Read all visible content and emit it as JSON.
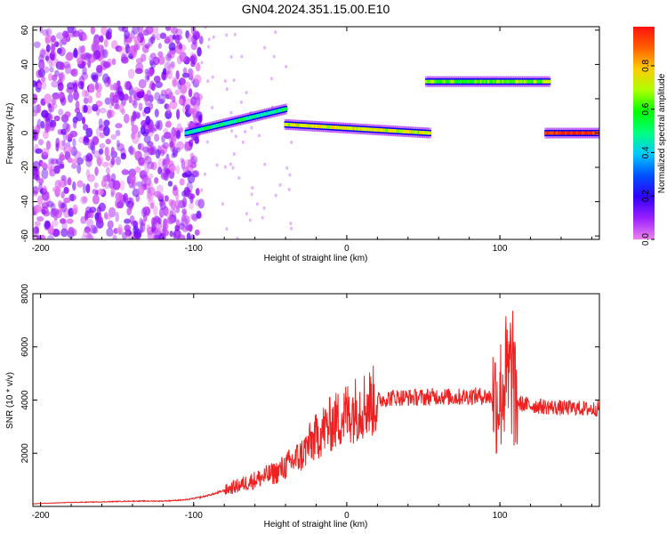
{
  "chart_data": [
    {
      "type": "heatmap",
      "title": "GN04.2024.351.15.00.E10",
      "xlabel": "Height of straight line (km)",
      "ylabel": "Frequency (Hz)",
      "xlim": [
        -205,
        165
      ],
      "ylim": [
        -62,
        62
      ],
      "xticks": [
        -200,
        -100,
        0,
        100
      ],
      "yticks": [
        -60,
        -40,
        -20,
        0,
        20,
        40,
        60
      ],
      "colorbar": {
        "label": "Normalized spectral amplitude",
        "range": [
          0,
          0.98
        ],
        "ticks": [
          0.0,
          0.2,
          0.4,
          0.6,
          0.8
        ],
        "colormap": [
          "#ee82ee",
          "#8a00ff",
          "#0000ff",
          "#00ccff",
          "#00ff88",
          "#00ff00",
          "#ccff00",
          "#ffcc00",
          "#ff6600",
          "#ff0000"
        ]
      },
      "features": [
        {
          "kind": "noise",
          "x_range": [
            -205,
            -95
          ],
          "freq_range": [
            -62,
            62
          ],
          "amplitude_range": [
            0.0,
            0.15
          ]
        },
        {
          "kind": "band",
          "x_range": [
            -105,
            -40
          ],
          "freq_start": 0,
          "freq_end": 14,
          "amplitude": 0.45
        },
        {
          "kind": "band",
          "x_range": [
            -40,
            54
          ],
          "freq_start": 5,
          "freq_end": 0,
          "amplitude": 0.7
        },
        {
          "kind": "band",
          "x_range": [
            52,
            132
          ],
          "freq_start": 30,
          "freq_end": 30,
          "amplitude": 0.6
        },
        {
          "kind": "band",
          "x_range": [
            130,
            165
          ],
          "freq_start": 0,
          "freq_end": 0,
          "amplitude": 0.95
        }
      ]
    },
    {
      "type": "line",
      "title": "",
      "xlabel": "Height of straight line (km)",
      "ylabel": "SNR (10 * v/v)",
      "xlim": [
        -205,
        165
      ],
      "ylim": [
        0,
        8000
      ],
      "xticks": [
        -200,
        -100,
        0,
        100
      ],
      "yticks": [
        2000,
        4000,
        6000,
        8000
      ],
      "color": "#ee2020",
      "series": [
        {
          "x": [
            -205,
            -180,
            -160,
            -140,
            -120,
            -105,
            -95,
            -85,
            -75,
            -65,
            -55,
            -45,
            -38,
            -30,
            -25,
            -20,
            -15,
            -10,
            -5,
            0,
            10,
            20,
            30,
            40,
            50,
            60,
            70,
            80,
            90,
            95,
            100,
            103,
            106,
            108,
            110,
            115,
            120,
            130,
            140,
            150,
            160,
            165
          ],
          "values": [
            100,
            150,
            170,
            200,
            200,
            250,
            350,
            500,
            700,
            900,
            1100,
            1300,
            1600,
            1900,
            2300,
            2600,
            2900,
            3100,
            3300,
            3500,
            3800,
            4000,
            4100,
            4100,
            4100,
            4150,
            4100,
            4150,
            4150,
            4100,
            4100,
            4800,
            4600,
            5500,
            3900,
            3850,
            3800,
            3750,
            3700,
            3700,
            3650,
            3700
          ]
        }
      ]
    }
  ]
}
